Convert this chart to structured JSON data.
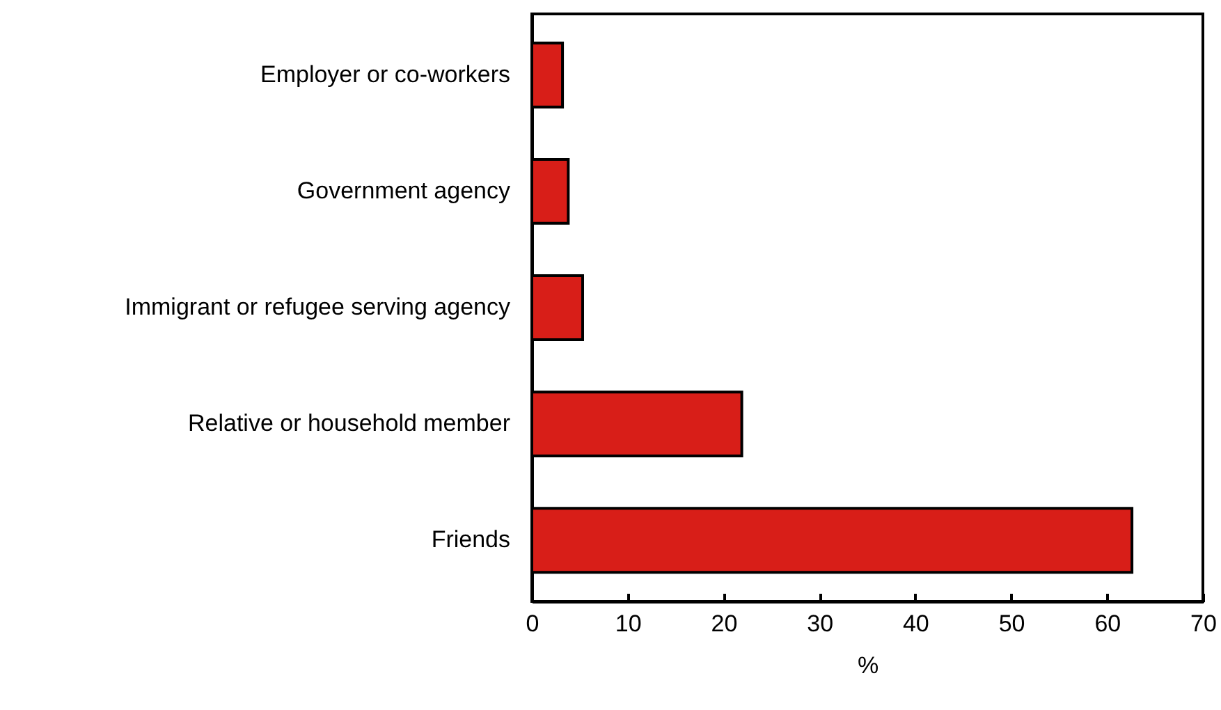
{
  "chart_data": {
    "type": "bar",
    "orientation": "horizontal",
    "xlabel": "%",
    "categories": [
      "Employer or co-workers",
      "Government agency",
      "Immigrant or refugee serving agency",
      "Relative or household member",
      "Friends"
    ],
    "values": [
      3.2,
      3.8,
      5.3,
      21.9,
      62.6
    ],
    "color": "#d81e18",
    "xlim": [
      0,
      70
    ],
    "xticks": [
      0,
      10,
      20,
      30,
      40,
      50,
      60,
      70
    ],
    "grid": false
  }
}
